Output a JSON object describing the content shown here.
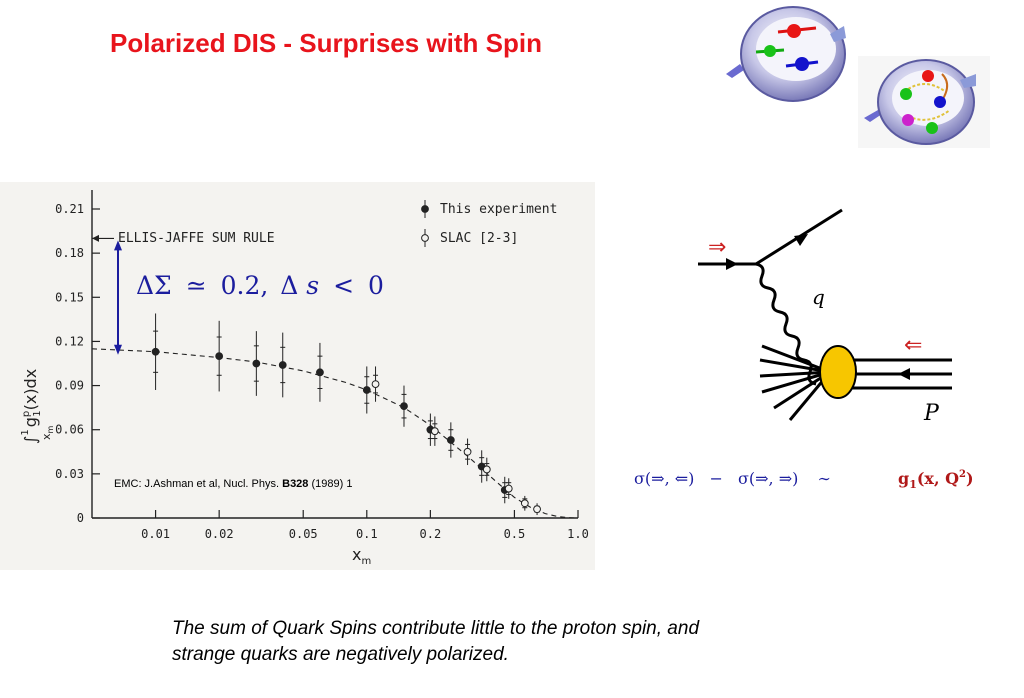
{
  "title": "Polarized DIS - Surprises with Spin",
  "chart_data": {
    "type": "scatter",
    "x_scale": "log",
    "xlabel": "x",
    "xlabel_sub": "m",
    "ylabel": "∫",
    "ylabel_parts": {
      "lower": "x",
      "lower_sub": "m",
      "upper": "1",
      "main": "g",
      "main_sup": "p",
      "main_sub": "1",
      "rest": "(x)dx"
    },
    "xlim": [
      0.005,
      1.0
    ],
    "ylim": [
      0,
      0.21
    ],
    "x_ticks": [
      0.01,
      0.02,
      0.05,
      0.1,
      0.2,
      0.5,
      1.0
    ],
    "x_tick_labels": [
      "0.01",
      "0.02",
      "0.05",
      "0.1",
      "0.2",
      "0.5",
      "1.0"
    ],
    "y_ticks": [
      0,
      0.03,
      0.06,
      0.09,
      0.12,
      0.15,
      0.18,
      0.21
    ],
    "y_tick_labels": [
      "0",
      "0.03",
      "0.06",
      "0.09",
      "0.12",
      "0.15",
      "0.18",
      "0.21"
    ],
    "legend": [
      {
        "label": "This experiment",
        "marker": "filled"
      },
      {
        "label": "SLAC [2-3]",
        "marker": "open"
      }
    ],
    "legend_position": "top-right",
    "sum_rule": {
      "label": "ELLIS-JAFFE SUM RULE",
      "y": 0.19
    },
    "series": [
      {
        "name": "This experiment",
        "marker": "filled",
        "x": [
          0.01,
          0.02,
          0.03,
          0.04,
          0.06,
          0.1,
          0.15,
          0.2,
          0.25,
          0.35,
          0.45
        ],
        "y": [
          0.113,
          0.11,
          0.105,
          0.104,
          0.099,
          0.087,
          0.076,
          0.06,
          0.053,
          0.035,
          0.019
        ],
        "err_outer": [
          0.026,
          0.024,
          0.022,
          0.022,
          0.02,
          0.016,
          0.014,
          0.011,
          0.012,
          0.011,
          0.009
        ],
        "err_inner": [
          0.014,
          0.013,
          0.012,
          0.012,
          0.011,
          0.009,
          0.008,
          0.006,
          0.007,
          0.006,
          0.005
        ]
      },
      {
        "name": "SLAC [2-3]",
        "marker": "open",
        "x": [
          0.11,
          0.21,
          0.3,
          0.37,
          0.47,
          0.56,
          0.64
        ],
        "y": [
          0.091,
          0.059,
          0.045,
          0.033,
          0.02,
          0.01,
          0.006
        ],
        "err_outer": [
          0.012,
          0.01,
          0.009,
          0.008,
          0.007,
          0.005,
          0.004
        ],
        "err_inner": [
          0.006,
          0.005,
          0.005,
          0.004,
          0.004,
          0.003,
          0.002
        ]
      }
    ],
    "curve": {
      "x": [
        0.005,
        0.01,
        0.02,
        0.03,
        0.05,
        0.08,
        0.1,
        0.15,
        0.2,
        0.3,
        0.4,
        0.5,
        0.6,
        0.7,
        0.8,
        0.9,
        1.0
      ],
      "y": [
        0.115,
        0.113,
        0.109,
        0.106,
        0.1,
        0.092,
        0.087,
        0.075,
        0.063,
        0.042,
        0.026,
        0.014,
        0.007,
        0.003,
        0.001,
        0.0002,
        0
      ]
    },
    "annotation": {
      "delta_sigma": "ΔΣ",
      "approx": "≃",
      "value": "0.2,",
      "delta_s": "Δ",
      "s": "s",
      "lt": "<",
      "zero": "0"
    },
    "reference": {
      "prefix": "EMC: J.Ashman et al, Nucl. Phys. ",
      "volume": "B328",
      "suffix": " (1989) 1"
    },
    "colors": {
      "annotation": "#1b1d9e",
      "arrow": "#1b1d9e",
      "ink": "#222222"
    }
  },
  "diagram": {
    "q_label": "q",
    "p_label": "P",
    "beam_arrow": "⇒",
    "target_arrow": "⇐",
    "colors": {
      "arrows": "#cc2222",
      "blob": "#f7c600",
      "line": "#000000"
    }
  },
  "formula": {
    "sigma1": "σ(⇒, ⇐)",
    "minus": "−",
    "sigma2": "σ(⇒, ⇒)",
    "sim": "∼",
    "g1": "g",
    "g1_sub": "1",
    "g1_args": "(x, Q",
    "g1_sup": "2",
    "close": ")",
    "color": "#1b1d9e",
    "g1_color": "#b01818"
  },
  "caption": {
    "line1": "The sum of Quark Spins contribute little to the proton spin, and",
    "line2": "strange quarks are negatively polarized."
  }
}
